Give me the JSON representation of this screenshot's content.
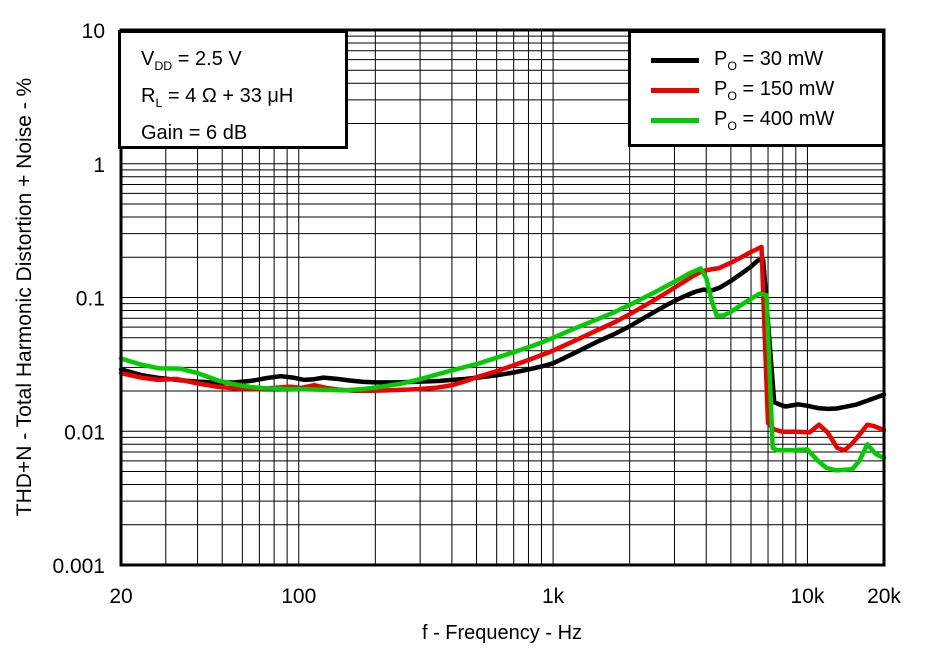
{
  "chart_data": {
    "type": "line",
    "x_scale": "log",
    "y_scale": "log",
    "xlabel": "f - Frequency - Hz",
    "ylabel": "THD+N - Total Harmonic Distortion + Noise - %",
    "xlim": [
      20,
      20000
    ],
    "ylim": [
      0.001,
      10
    ],
    "grid": "full log grid, major and minor lines, black",
    "legend_position": "top-right inside plot",
    "annotations": [
      {
        "pre": "V",
        "sub": "DD",
        "post": " = 2.5 V"
      },
      {
        "pre": "R",
        "sub": "L",
        "post": " = 4 Ω + 33 μH"
      },
      {
        "pre": "Gain = 6 dB",
        "sub": "",
        "post": ""
      }
    ],
    "series": [
      {
        "name": "PO = 30 mW",
        "label_parts": {
          "pre": "P",
          "sub": "O",
          "post": " = 30 mW"
        },
        "color": "#000000",
        "points": [
          [
            20,
            0.029
          ],
          [
            24,
            0.0263
          ],
          [
            28,
            0.0251
          ],
          [
            34,
            0.0241
          ],
          [
            40,
            0.0235
          ],
          [
            48,
            0.0231
          ],
          [
            56,
            0.0232
          ],
          [
            65,
            0.0238
          ],
          [
            75,
            0.025
          ],
          [
            85,
            0.0258
          ],
          [
            95,
            0.0252
          ],
          [
            105,
            0.0242
          ],
          [
            115,
            0.0245
          ],
          [
            125,
            0.0252
          ],
          [
            140,
            0.0247
          ],
          [
            160,
            0.0239
          ],
          [
            180,
            0.0234
          ],
          [
            200,
            0.0232
          ],
          [
            240,
            0.0232
          ],
          [
            280,
            0.0234
          ],
          [
            320,
            0.0236
          ],
          [
            360,
            0.0238
          ],
          [
            400,
            0.0242
          ],
          [
            450,
            0.0246
          ],
          [
            500,
            0.0251
          ],
          [
            600,
            0.0262
          ],
          [
            700,
            0.0275
          ],
          [
            800,
            0.029
          ],
          [
            900,
            0.0305
          ],
          [
            1000,
            0.0322
          ],
          [
            1200,
            0.038
          ],
          [
            1500,
            0.047
          ],
          [
            1750,
            0.0535
          ],
          [
            2000,
            0.061
          ],
          [
            2400,
            0.0745
          ],
          [
            2800,
            0.088
          ],
          [
            3200,
            0.1
          ],
          [
            3600,
            0.11
          ],
          [
            3900,
            0.1145
          ],
          [
            4150,
            0.112
          ],
          [
            4500,
            0.118
          ],
          [
            5000,
            0.133
          ],
          [
            5500,
            0.151
          ],
          [
            6000,
            0.17
          ],
          [
            6400,
            0.19
          ],
          [
            6700,
            0.19
          ],
          [
            7400,
            0.0165
          ],
          [
            7800,
            0.0158
          ],
          [
            8200,
            0.0153
          ],
          [
            8700,
            0.0156
          ],
          [
            9200,
            0.0159
          ],
          [
            10000,
            0.0155
          ],
          [
            11000,
            0.0149
          ],
          [
            12000,
            0.0147
          ],
          [
            13000,
            0.0148
          ],
          [
            14000,
            0.0152
          ],
          [
            15500,
            0.0158
          ],
          [
            17000,
            0.0168
          ],
          [
            18500,
            0.0178
          ],
          [
            20000,
            0.0188
          ]
        ]
      },
      {
        "name": "PO = 150 mW",
        "label_parts": {
          "pre": "P",
          "sub": "O",
          "post": " = 150 mW"
        },
        "color": "#ee0000",
        "points": [
          [
            20,
            0.0272
          ],
          [
            24,
            0.0252
          ],
          [
            28,
            0.0242
          ],
          [
            33,
            0.0246
          ],
          [
            40,
            0.0228
          ],
          [
            48,
            0.0215
          ],
          [
            58,
            0.0208
          ],
          [
            70,
            0.0206
          ],
          [
            80,
            0.0211
          ],
          [
            92,
            0.0215
          ],
          [
            102,
            0.0211
          ],
          [
            115,
            0.0221
          ],
          [
            128,
            0.0211
          ],
          [
            145,
            0.0204
          ],
          [
            165,
            0.0201
          ],
          [
            190,
            0.0201
          ],
          [
            220,
            0.0202
          ],
          [
            260,
            0.0204
          ],
          [
            300,
            0.0207
          ],
          [
            350,
            0.0212
          ],
          [
            400,
            0.0221
          ],
          [
            450,
            0.0236
          ],
          [
            500,
            0.0253
          ],
          [
            600,
            0.0281
          ],
          [
            700,
            0.0312
          ],
          [
            800,
            0.0341
          ],
          [
            900,
            0.0371
          ],
          [
            1000,
            0.0401
          ],
          [
            1200,
            0.047
          ],
          [
            1500,
            0.0572
          ],
          [
            1750,
            0.0655
          ],
          [
            2000,
            0.075
          ],
          [
            2400,
            0.0915
          ],
          [
            2800,
            0.109
          ],
          [
            3200,
            0.128
          ],
          [
            3600,
            0.147
          ],
          [
            3900,
            0.158
          ],
          [
            4150,
            0.162
          ],
          [
            4500,
            0.166
          ],
          [
            5000,
            0.182
          ],
          [
            5500,
            0.2
          ],
          [
            6000,
            0.219
          ],
          [
            6600,
            0.239
          ],
          [
            7000,
            0.0115
          ],
          [
            7400,
            0.0103
          ],
          [
            8000,
            0.0099
          ],
          [
            9000,
            0.0099
          ],
          [
            10200,
            0.0098
          ],
          [
            11100,
            0.0112
          ],
          [
            12000,
            0.0098
          ],
          [
            13100,
            0.0075
          ],
          [
            14000,
            0.0072
          ],
          [
            15000,
            0.0081
          ],
          [
            16000,
            0.0094
          ],
          [
            17200,
            0.0112
          ],
          [
            18300,
            0.0109
          ],
          [
            20000,
            0.0102
          ]
        ]
      },
      {
        "name": "PO = 400 mW",
        "label_parts": {
          "pre": "P",
          "sub": "O",
          "post": " = 400 mW"
        },
        "color": "#00cc00",
        "points": [
          [
            20,
            0.035
          ],
          [
            24,
            0.0315
          ],
          [
            28,
            0.0296
          ],
          [
            34,
            0.0294
          ],
          [
            40,
            0.0272
          ],
          [
            48,
            0.024
          ],
          [
            56,
            0.0224
          ],
          [
            65,
            0.0214
          ],
          [
            75,
            0.0209
          ],
          [
            90,
            0.0207
          ],
          [
            105,
            0.0206
          ],
          [
            125,
            0.0204
          ],
          [
            150,
            0.0202
          ],
          [
            175,
            0.0206
          ],
          [
            200,
            0.0212
          ],
          [
            250,
            0.0226
          ],
          [
            300,
            0.0245
          ],
          [
            350,
            0.0266
          ],
          [
            400,
            0.0285
          ],
          [
            450,
            0.0302
          ],
          [
            500,
            0.0318
          ],
          [
            600,
            0.0355
          ],
          [
            700,
            0.039
          ],
          [
            800,
            0.0425
          ],
          [
            900,
            0.046
          ],
          [
            1000,
            0.05
          ],
          [
            1200,
            0.058
          ],
          [
            1500,
            0.069
          ],
          [
            1750,
            0.078
          ],
          [
            2000,
            0.088
          ],
          [
            2500,
            0.109
          ],
          [
            3000,
            0.131
          ],
          [
            3400,
            0.15
          ],
          [
            3800,
            0.165
          ],
          [
            4000,
            0.14
          ],
          [
            4200,
            0.095
          ],
          [
            4400,
            0.073
          ],
          [
            4700,
            0.0735
          ],
          [
            5000,
            0.078
          ],
          [
            5500,
            0.088
          ],
          [
            6000,
            0.098
          ],
          [
            6500,
            0.107
          ],
          [
            6900,
            0.104
          ],
          [
            7300,
            0.0075
          ],
          [
            7600,
            0.0072
          ],
          [
            8500,
            0.0072
          ],
          [
            10000,
            0.0073
          ],
          [
            11000,
            0.006
          ],
          [
            11900,
            0.0053
          ],
          [
            13000,
            0.0051
          ],
          [
            15000,
            0.0052
          ],
          [
            16000,
            0.006
          ],
          [
            17200,
            0.008
          ],
          [
            18500,
            0.0068
          ],
          [
            20000,
            0.0063
          ]
        ]
      }
    ]
  },
  "x_axis": {
    "title": "f - Frequency - Hz",
    "ticks": [
      {
        "v": 20,
        "label": "20"
      },
      {
        "v": 100,
        "label": "100"
      },
      {
        "v": 1000,
        "label": "1k"
      },
      {
        "v": 10000,
        "label": "10k"
      },
      {
        "v": 20000,
        "label": "20k"
      }
    ]
  },
  "y_axis": {
    "title": "THD+N - Total Harmonic Distortion + Noise - %",
    "ticks": [
      {
        "v": 10,
        "label": "10"
      },
      {
        "v": 1,
        "label": "1"
      },
      {
        "v": 0.1,
        "label": "0.1"
      },
      {
        "v": 0.01,
        "label": "0.01"
      },
      {
        "v": 0.001,
        "label": "0.001"
      }
    ]
  }
}
